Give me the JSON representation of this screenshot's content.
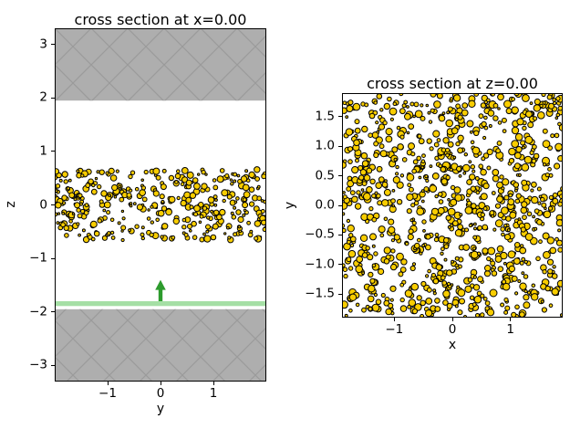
{
  "figure": {
    "background": "#ffffff"
  },
  "chart_data": [
    {
      "type": "scatter",
      "title": "cross section at x=0.00",
      "xlabel": "y",
      "ylabel": "z",
      "xlim": [
        -2.0,
        2.0
      ],
      "ylim": [
        -3.3,
        3.3
      ],
      "grid": false,
      "xticks": [
        {
          "v": -1,
          "label": "−1"
        },
        {
          "v": 0,
          "label": "0"
        },
        {
          "v": 1,
          "label": "1"
        }
      ],
      "yticks": [
        {
          "v": 3,
          "label": "3"
        },
        {
          "v": 2,
          "label": "2"
        },
        {
          "v": 1,
          "label": "1"
        },
        {
          "v": 0,
          "label": "0"
        },
        {
          "v": -1,
          "label": "−1"
        },
        {
          "v": -2,
          "label": "−2"
        },
        {
          "v": -3,
          "label": "−3"
        }
      ],
      "walls": {
        "fill": "#aeaeae",
        "hatch_color": "#9b9b9b",
        "spans": [
          {
            "y_from": 1.95,
            "y_to": 3.3
          },
          {
            "y_from": -3.3,
            "y_to": -1.95
          }
        ]
      },
      "particles": {
        "count": 380,
        "x_min": -2.0,
        "x_max": 2.0,
        "y_min": -0.66,
        "y_max": 0.66,
        "radius_px": [
          1.2,
          3.6
        ],
        "fill": "#f8cd00",
        "edge": "#000000"
      },
      "piston_line": {
        "y_from": -1.89,
        "y_to": -1.8,
        "color": "#a5dfa5"
      },
      "arrow": {
        "x": 0,
        "y_from": -1.8,
        "y_to": -1.4,
        "color": "#2d9b2d"
      }
    },
    {
      "type": "scatter",
      "title": "cross section at z=0.00",
      "xlabel": "x",
      "ylabel": "y",
      "xlim": [
        -1.9,
        1.9
      ],
      "ylim": [
        -1.9,
        1.9
      ],
      "grid": false,
      "xticks": [
        {
          "v": -1,
          "label": "−1"
        },
        {
          "v": 0,
          "label": "0"
        },
        {
          "v": 1,
          "label": "1"
        }
      ],
      "yticks": [
        {
          "v": 1.5,
          "label": "1.5"
        },
        {
          "v": 1.0,
          "label": "1.0"
        },
        {
          "v": 0.5,
          "label": "0.5"
        },
        {
          "v": 0.0,
          "label": "0.0"
        },
        {
          "v": -0.5,
          "label": "−0.5"
        },
        {
          "v": -1.0,
          "label": "−1.0"
        },
        {
          "v": -1.5,
          "label": "−1.5"
        }
      ],
      "particles": {
        "count": 1000,
        "x_min": -1.9,
        "x_max": 1.9,
        "y_min": -1.9,
        "y_max": 1.9,
        "radius_px": [
          1.3,
          4.0
        ],
        "fill": "#f8cd00",
        "edge": "#000000"
      }
    }
  ]
}
